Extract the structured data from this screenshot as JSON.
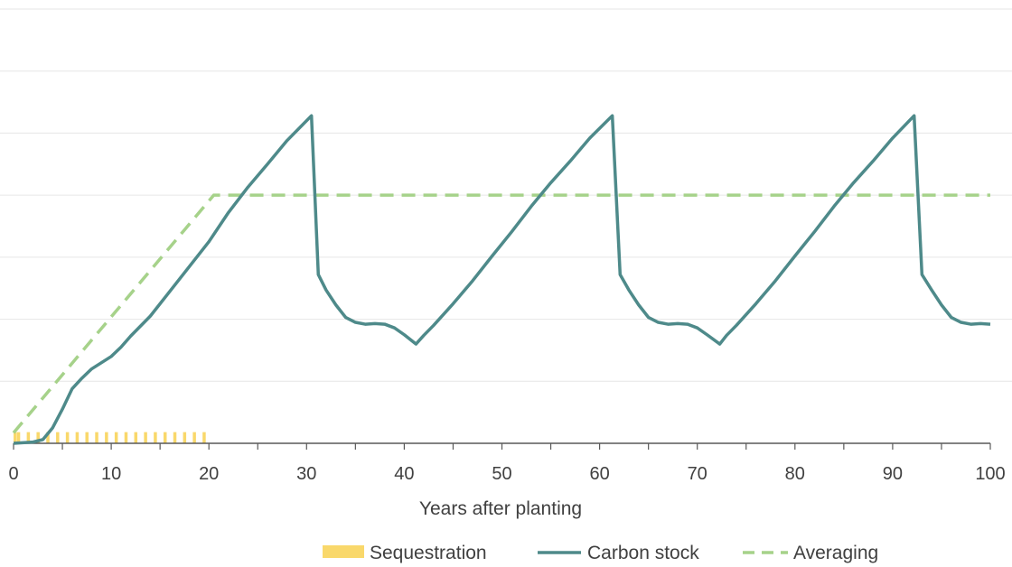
{
  "chart_data": {
    "type": "line",
    "xlabel": "Years after planting",
    "ylabel": "",
    "xlim": [
      0,
      100
    ],
    "ylim": [
      0,
      7
    ],
    "grid": true,
    "legend_position": "bottom",
    "x_ticks": [
      0,
      10,
      20,
      30,
      40,
      50,
      60,
      70,
      80,
      90,
      100
    ],
    "colors": {
      "sequestration": "#f9d86b",
      "carbon_stock": "#4e8a8a",
      "averaging": "#a6d28a",
      "grid": "#e6e6e6",
      "axis": "#595959",
      "text": "#404040"
    },
    "series": [
      {
        "name": "Sequestration",
        "kind": "bar",
        "x": [
          1,
          2,
          3,
          4,
          5,
          6,
          7,
          8,
          9,
          10,
          11,
          12,
          13,
          14,
          15,
          16,
          17,
          18,
          19,
          20
        ],
        "values": [
          0.18,
          0.18,
          0.18,
          0.18,
          0.18,
          0.18,
          0.18,
          0.18,
          0.18,
          0.18,
          0.18,
          0.18,
          0.18,
          0.18,
          0.18,
          0.18,
          0.18,
          0.18,
          0.18,
          0.18
        ]
      },
      {
        "name": "Carbon stock",
        "kind": "line",
        "points": [
          [
            0,
            0
          ],
          [
            2,
            0.02
          ],
          [
            3,
            0.06
          ],
          [
            4,
            0.25
          ],
          [
            5,
            0.55
          ],
          [
            6,
            0.88
          ],
          [
            7,
            1.05
          ],
          [
            8,
            1.2
          ],
          [
            9,
            1.3
          ],
          [
            10,
            1.4
          ],
          [
            11,
            1.55
          ],
          [
            12,
            1.73
          ],
          [
            14,
            2.05
          ],
          [
            16,
            2.45
          ],
          [
            18,
            2.85
          ],
          [
            20,
            3.25
          ],
          [
            22,
            3.72
          ],
          [
            24,
            4.13
          ],
          [
            26,
            4.5
          ],
          [
            28,
            4.88
          ],
          [
            30.5,
            5.28
          ],
          [
            31.2,
            2.72
          ],
          [
            32,
            2.47
          ],
          [
            33,
            2.23
          ],
          [
            34,
            2.03
          ],
          [
            35,
            1.95
          ],
          [
            36,
            1.92
          ],
          [
            37,
            1.93
          ],
          [
            38,
            1.92
          ],
          [
            39,
            1.86
          ],
          [
            40,
            1.75
          ],
          [
            41.2,
            1.6
          ],
          [
            42,
            1.74
          ],
          [
            43,
            1.9
          ],
          [
            45,
            2.25
          ],
          [
            47,
            2.62
          ],
          [
            49,
            3.02
          ],
          [
            51,
            3.41
          ],
          [
            53,
            3.82
          ],
          [
            55,
            4.2
          ],
          [
            57,
            4.55
          ],
          [
            59,
            4.92
          ],
          [
            61.3,
            5.28
          ],
          [
            62.1,
            2.72
          ],
          [
            63,
            2.47
          ],
          [
            64,
            2.23
          ],
          [
            65,
            2.03
          ],
          [
            66,
            1.95
          ],
          [
            67,
            1.92
          ],
          [
            68,
            1.93
          ],
          [
            69,
            1.92
          ],
          [
            70,
            1.86
          ],
          [
            71,
            1.75
          ],
          [
            72.3,
            1.6
          ],
          [
            73,
            1.74
          ],
          [
            74,
            1.9
          ],
          [
            76,
            2.25
          ],
          [
            78,
            2.62
          ],
          [
            80,
            3.02
          ],
          [
            82,
            3.41
          ],
          [
            84,
            3.82
          ],
          [
            86,
            4.2
          ],
          [
            88,
            4.55
          ],
          [
            90,
            4.92
          ],
          [
            92.2,
            5.28
          ],
          [
            93,
            2.72
          ],
          [
            94,
            2.47
          ],
          [
            95,
            2.23
          ],
          [
            96,
            2.03
          ],
          [
            97,
            1.95
          ],
          [
            98,
            1.92
          ],
          [
            99,
            1.93
          ],
          [
            100,
            1.92
          ]
        ]
      },
      {
        "name": "Averaging",
        "kind": "dashed-line",
        "points": [
          [
            0,
            0.17
          ],
          [
            20.5,
            4.0
          ],
          [
            100,
            4.0
          ]
        ]
      }
    ]
  }
}
